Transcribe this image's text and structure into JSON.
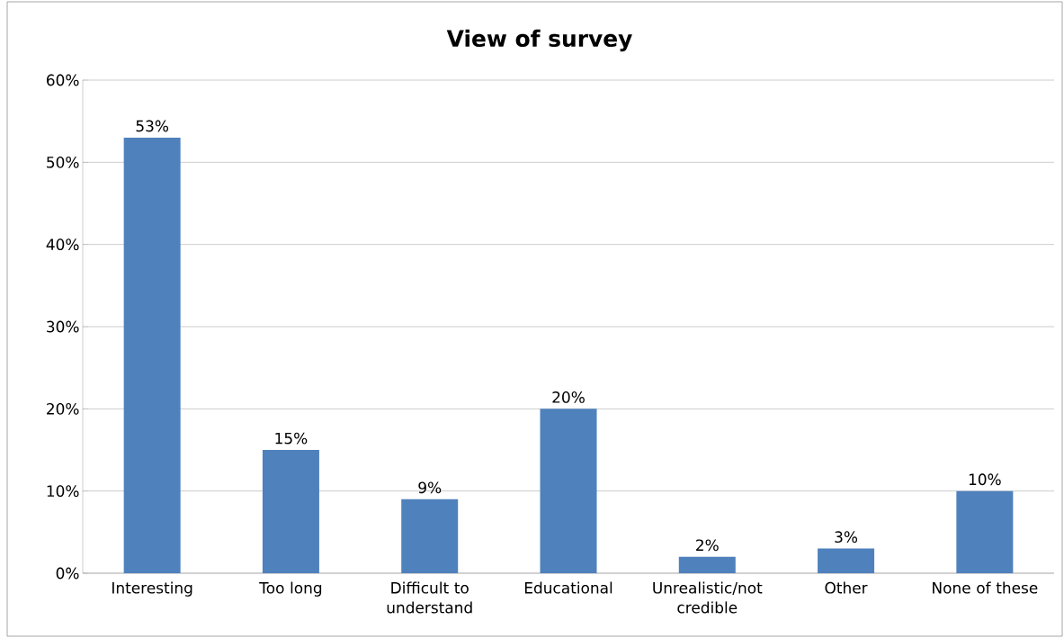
{
  "chart_data": {
    "type": "bar",
    "title": "View of survey",
    "categories": [
      "Interesting",
      "Too long",
      "Difficult to understand",
      "Educational",
      "Unrealistic/not credible",
      "Other",
      "None of these"
    ],
    "values": [
      53,
      15,
      9,
      20,
      2,
      3,
      10
    ],
    "value_labels": [
      "53%",
      "15%",
      "9%",
      "20%",
      "2%",
      "3%",
      "10%"
    ],
    "color": "#4f81bd",
    "ylim": [
      0,
      60
    ],
    "yticks": [
      {
        "value": 0,
        "label": "0%"
      },
      {
        "value": 10,
        "label": "10%"
      },
      {
        "value": 20,
        "label": "20%"
      },
      {
        "value": 30,
        "label": "30%"
      },
      {
        "value": 40,
        "label": "40%"
      },
      {
        "value": 50,
        "label": "50%"
      },
      {
        "value": 60,
        "label": "60%"
      }
    ],
    "grid": "y"
  }
}
